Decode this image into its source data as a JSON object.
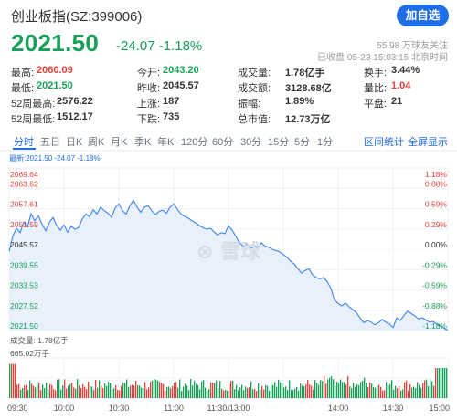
{
  "header": {
    "title": "创业板指(SZ:399006)",
    "add_label": "加自选"
  },
  "price": {
    "last": "2021.50",
    "change": "-24.07",
    "change_pct": "-1.18%"
  },
  "meta": {
    "followers": "55.98 万球友关注",
    "status": "已收盘 05-23 15:03:15 北京时间"
  },
  "quote": {
    "col1": [
      {
        "label": "最高:",
        "value": "2060.09",
        "color": "red"
      },
      {
        "label": "最低:",
        "value": "2021.50",
        "color": "green"
      },
      {
        "label": "52周最高:",
        "value": "2576.22",
        "color": "dark"
      },
      {
        "label": "52周最低:",
        "value": "1512.17",
        "color": "dark"
      }
    ],
    "col2": [
      {
        "label": "今开:",
        "value": "2043.20",
        "color": "green"
      },
      {
        "label": "昨收:",
        "value": "2045.57",
        "color": "dark"
      },
      {
        "label": "上涨:",
        "value": "187",
        "color": "dark"
      },
      {
        "label": "下跌:",
        "value": "735",
        "color": "dark"
      }
    ],
    "col3": [
      {
        "label": "成交量:",
        "value": "1.78亿手",
        "color": "dark"
      },
      {
        "label": "成交额:",
        "value": "3128.68亿",
        "color": "dark"
      },
      {
        "label": "振幅:",
        "value": "1.89%",
        "color": "dark"
      },
      {
        "label": "总市值:",
        "value": "12.73万亿",
        "color": "dark"
      }
    ],
    "col4": [
      {
        "label": "换手:",
        "value": "3.44%",
        "color": "dark"
      },
      {
        "label": "量比:",
        "value": "1.04",
        "color": "red"
      },
      {
        "label": "平盘:",
        "value": "21",
        "color": "dark"
      }
    ]
  },
  "tabs": [
    "分时",
    "五日",
    "日K",
    "周K",
    "月K",
    "季K",
    "年K",
    "120分",
    "60分",
    "30分",
    "15分",
    "5分",
    "1分"
  ],
  "tab_links": [
    "区间统计",
    "全屏显示"
  ],
  "legend": "最新:2021.50 -24.07 -1.18%",
  "chart_data": {
    "type": "area",
    "price_ticks": [
      "2069.64",
      "2063.62",
      "2057.61",
      "2051.59",
      "2045.57",
      "2039.55",
      "2033.53",
      "2027.52",
      "2021.50"
    ],
    "pct_ticks": [
      "1.18%",
      "0.88%",
      "0.59%",
      "0.29%",
      "0.00%",
      "-0.29%",
      "-0.59%",
      "-0.88%",
      "-1.18%"
    ],
    "x_labels": [
      "09:30",
      "10:00",
      "10:30",
      "11:00",
      "11:30/13:00",
      "14:00",
      "14:30",
      "15:00"
    ],
    "prev_close": 2045.57,
    "ylim": [
      2021.5,
      2069.64
    ],
    "series": [
      {
        "x": [
          0,
          2,
          4,
          6,
          8,
          10,
          12,
          14,
          16,
          18,
          20,
          22,
          24,
          26,
          28,
          30,
          32,
          34,
          36,
          38,
          40,
          42,
          44,
          46,
          48,
          50,
          52,
          54,
          56,
          58,
          60,
          62,
          64,
          66,
          68,
          70,
          72,
          74,
          76,
          78,
          80,
          82,
          84,
          86,
          88,
          90,
          92,
          94,
          96,
          98,
          100,
          102,
          104,
          106,
          108,
          110,
          112,
          114,
          116,
          118,
          120,
          122,
          124,
          126,
          128,
          130,
          132,
          134,
          136,
          138,
          140,
          142,
          144,
          146,
          148,
          150,
          152,
          154,
          156,
          158,
          160,
          162,
          164,
          166,
          168,
          170,
          172,
          174,
          176,
          178,
          180,
          182,
          184,
          186,
          188,
          190,
          192,
          194,
          196,
          198,
          200,
          202,
          204,
          206,
          208,
          210,
          212,
          214,
          216,
          218,
          220,
          222,
          224,
          226,
          228,
          230,
          232,
          234,
          236,
          238,
          240
        ],
        "values": [
          2045.0,
          2049.5,
          2051.8,
          2050.5,
          2053.6,
          2052.2,
          2056.1,
          2054.0,
          2055.5,
          2053.0,
          2051.0,
          2053.5,
          2055.0,
          2052.6,
          2051.2,
          2052.8,
          2050.6,
          2052.4,
          2051.5,
          2052.0,
          2054.5,
          2056.0,
          2055.2,
          2057.3,
          2056.0,
          2058.0,
          2057.0,
          2056.3,
          2055.0,
          2057.8,
          2059.0,
          2057.0,
          2056.0,
          2058.4,
          2060.09,
          2058.0,
          2056.5,
          2058.0,
          2058.5,
          2057.0,
          2055.8,
          2056.8,
          2057.2,
          2056.2,
          2058.0,
          2059.0,
          2057.5,
          2056.0,
          2055.3,
          2054.8,
          2054.0,
          2053.4,
          2052.6,
          2052.0,
          2051.5,
          2051.8,
          2050.8,
          2049.8,
          2050.5,
          2050.2,
          2052.5,
          2051.2,
          2049.4,
          2047.5,
          2046.5,
          2047.2,
          2045.8,
          2046.6,
          2046.0,
          2047.5,
          2046.5,
          2046.2,
          2045.5,
          2045.2,
          2044.8,
          2044.0,
          2043.2,
          2042.0,
          2041.2,
          2039.8,
          2038.5,
          2039.3,
          2039.8,
          2038.0,
          2037.2,
          2036.8,
          2037.2,
          2036.0,
          2034.0,
          2030.5,
          2029.5,
          2028.8,
          2029.6,
          2028.5,
          2027.7,
          2026.8,
          2025.2,
          2023.8,
          2024.5,
          2024.0,
          2023.2,
          2023.8,
          2024.8,
          2024.0,
          2023.5,
          2022.4,
          2025.2,
          2024.5,
          2026.0,
          2027.3,
          2026.5,
          2025.8,
          2024.9,
          2025.3,
          2024.6,
          2024.0,
          2024.2,
          2023.4,
          2022.8,
          2022.2,
          2021.5
        ]
      }
    ],
    "volume": {
      "label": "成交量: 1.78亿手",
      "max_tick": "665.02万手",
      "max": 665.02
    }
  }
}
